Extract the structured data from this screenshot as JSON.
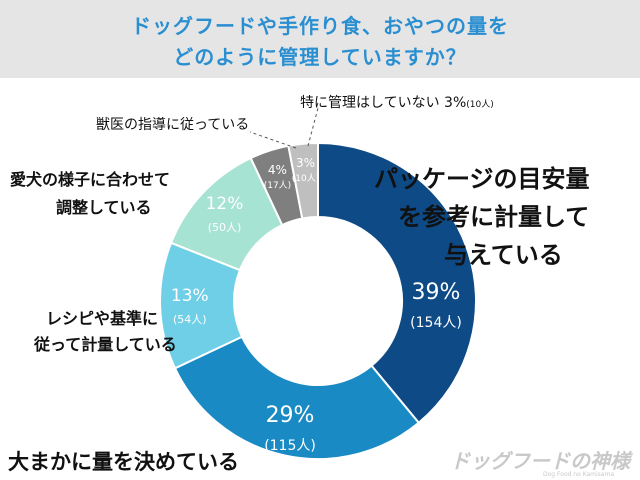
{
  "header": {
    "title_line1": "ドッグフードや手作り食、おやつの量を",
    "title_line2": "どのように管理していますか？"
  },
  "chart_data": {
    "type": "pie",
    "variant": "donut",
    "title": "ドッグフードや手作り食、おやつの量をどのように管理していますか？",
    "slices": [
      {
        "label": "パッケージの目安量を参考に計量して与えている",
        "percent": 39,
        "count": 154,
        "pct_text": "39%",
        "count_text": "(154人)",
        "color": "#0d4a86"
      },
      {
        "label": "大まかに量を決めている",
        "percent": 29,
        "count": 115,
        "pct_text": "29%",
        "count_text": "(115人)",
        "color": "#1a8ac4"
      },
      {
        "label": "レシピや基準に従って計量している",
        "percent": 13,
        "count": 54,
        "pct_text": "13%",
        "count_text": "(54人)",
        "color": "#6fcfe6"
      },
      {
        "label": "愛犬の様子に合わせて調整している",
        "percent": 12,
        "count": 50,
        "pct_text": "12%",
        "count_text": "(50人)",
        "color": "#a6e3d2"
      },
      {
        "label": "獣医の指導に従っている",
        "percent": 4,
        "count": 17,
        "pct_text": "4%",
        "count_text": "(17人)",
        "color": "#7f7f7f"
      },
      {
        "label": "特に管理はしていない",
        "percent": 3,
        "count": 10,
        "pct_text": "3%",
        "count_text": "(10人)",
        "color": "#bfbfbf"
      }
    ]
  },
  "callouts": {
    "pkg": [
      "パッケージの目安量",
      "を参考に計量して",
      "与えている"
    ],
    "rough": "大まかに量を決めている",
    "recipe": [
      "レシピや基準に",
      "従って計量している"
    ],
    "adjust": [
      "愛犬の様子に合わせて",
      "調整している"
    ],
    "vet": "獣医の指導に従っている",
    "none_label": "特に管理はしていない",
    "none_pct": "3%",
    "none_count": "(10人)"
  },
  "watermark": {
    "logo": "ドッグフードの神様",
    "sub": "Dog Food no Kamisama"
  }
}
